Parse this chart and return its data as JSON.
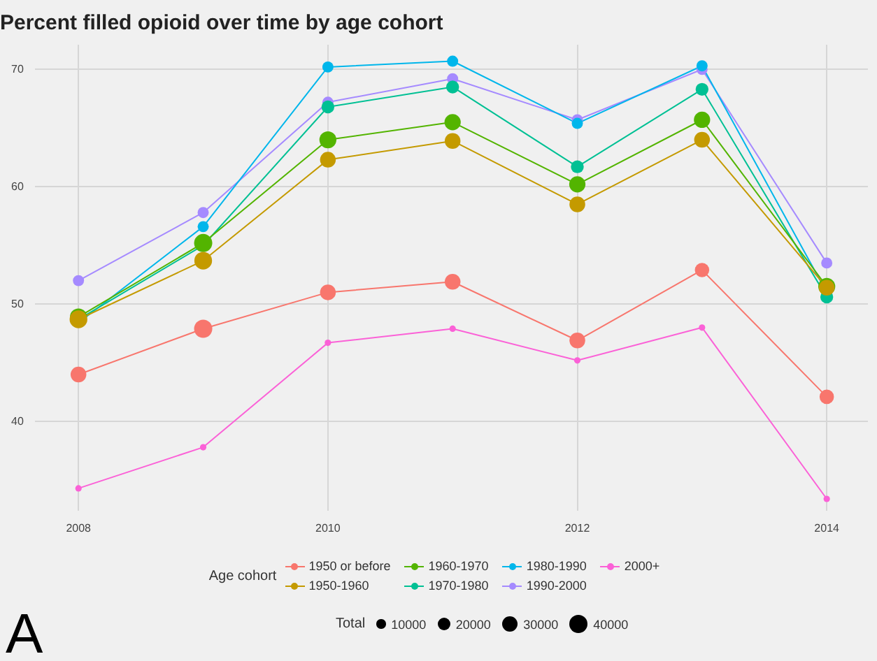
{
  "chart_data": {
    "type": "bubble",
    "title": "Percent filled opioid over time by age cohort",
    "legend_title": "Age cohort",
    "legend": "bottom",
    "grid": true,
    "marker": "circle",
    "line_style": "solid",
    "x": [
      2008,
      2009,
      2010,
      2011,
      2012,
      2013,
      2014
    ],
    "xlim": [
      2007.65,
      2014.33
    ],
    "xticks": [
      2008,
      2010,
      2012,
      2014
    ],
    "ylim": [
      32.4,
      72.1
    ],
    "yticks": [
      40,
      50,
      60,
      70
    ],
    "size_legend": [
      10000,
      20000,
      30000,
      40000
    ],
    "annotations": [
      "Total",
      "A"
    ],
    "series": [
      {
        "name": "1950 or before",
        "color": "#f8766d",
        "values": [
          44.0,
          47.9,
          51.0,
          51.9,
          46.9,
          52.9,
          42.1
        ],
        "sizes": [
          30000,
          40000,
          30000,
          30000,
          30000,
          25000,
          25000
        ]
      },
      {
        "name": "1950-1960",
        "color": "#c49a00",
        "values": [
          48.7,
          53.7,
          62.3,
          63.9,
          58.5,
          64.0,
          51.4
        ],
        "sizes": [
          38000,
          38000,
          30000,
          30000,
          30000,
          30000,
          30000
        ]
      },
      {
        "name": "1960-1970",
        "color": "#53b400",
        "values": [
          48.9,
          55.2,
          64.0,
          65.5,
          60.2,
          65.7,
          51.5
        ],
        "sizes": [
          35000,
          40000,
          35000,
          32000,
          32000,
          32000,
          35000
        ]
      },
      {
        "name": "1970-1980",
        "color": "#00c094",
        "values": [
          null,
          null,
          66.8,
          68.5,
          61.7,
          68.3,
          50.6
        ],
        "sizes": [
          null,
          null,
          20000,
          20000,
          20000,
          20000,
          20000
        ]
      },
      {
        "name": "1980-1990",
        "color": "#00b6eb",
        "values": [
          null,
          56.6,
          70.2,
          70.7,
          65.4,
          70.3,
          null
        ],
        "sizes": [
          null,
          15000,
          15000,
          15000,
          15000,
          15000,
          null
        ]
      },
      {
        "name": "1990-2000",
        "color": "#a58aff",
        "values": [
          52.0,
          57.8,
          67.2,
          69.2,
          65.7,
          70.0,
          53.5
        ],
        "sizes": [
          15000,
          15000,
          15000,
          15000,
          15000,
          15000,
          15000
        ]
      },
      {
        "name": "2000+",
        "color": "#fb61d7",
        "values": [
          34.3,
          37.8,
          46.7,
          47.9,
          45.2,
          48.0,
          33.4
        ],
        "sizes": [
          5000,
          5000,
          5000,
          5000,
          5000,
          5000,
          5000
        ]
      },
      {
        "type": "line",
        "marker": "none",
        "color": "#f8766d",
        "x": [
          2008,
          2009,
          2010,
          2011,
          2012,
          2013,
          2014
        ],
        "values": [
          44.0,
          47.9,
          51.0,
          51.9,
          46.9,
          52.9,
          42.1
        ]
      },
      {
        "type": "line",
        "marker": "none",
        "color": "#c49a00",
        "x": [
          2008,
          2009,
          2010,
          2011,
          2012,
          2013,
          2014
        ],
        "values": [
          48.7,
          53.7,
          62.3,
          63.9,
          58.5,
          64.0,
          51.4
        ]
      },
      {
        "type": "line",
        "marker": "none",
        "color": "#53b400",
        "x": [
          2008,
          2009,
          2010,
          2011,
          2012,
          2013,
          2014
        ],
        "values": [
          48.9,
          55.2,
          64.0,
          65.5,
          60.2,
          65.7,
          51.5
        ]
      },
      {
        "type": "line",
        "marker": "none",
        "color": "#00c094",
        "x": [
          2008,
          2009,
          2010,
          2011,
          2012,
          2013,
          2014
        ],
        "values": [
          48.7,
          55.0,
          66.8,
          68.5,
          61.7,
          68.3,
          50.6
        ]
      },
      {
        "type": "line",
        "marker": "none",
        "color": "#00b6eb",
        "x": [
          2008,
          2009,
          2010,
          2011,
          2012,
          2013,
          2014
        ],
        "values": [
          48.4,
          56.6,
          70.2,
          70.7,
          65.4,
          70.3,
          51.0
        ]
      },
      {
        "type": "line",
        "marker": "none",
        "color": "#a58aff",
        "x": [
          2008,
          2009,
          2010,
          2011,
          2012,
          2013,
          2014
        ],
        "values": [
          52.0,
          57.8,
          67.2,
          69.2,
          65.7,
          70.0,
          53.5
        ]
      },
      {
        "type": "line",
        "marker": "none",
        "color": "#fb61d7",
        "x": [
          2008,
          2009,
          2010,
          2011,
          2012,
          2013,
          2014
        ],
        "values": [
          34.3,
          37.8,
          46.7,
          47.9,
          45.2,
          48.0,
          33.4
        ]
      }
    ]
  }
}
